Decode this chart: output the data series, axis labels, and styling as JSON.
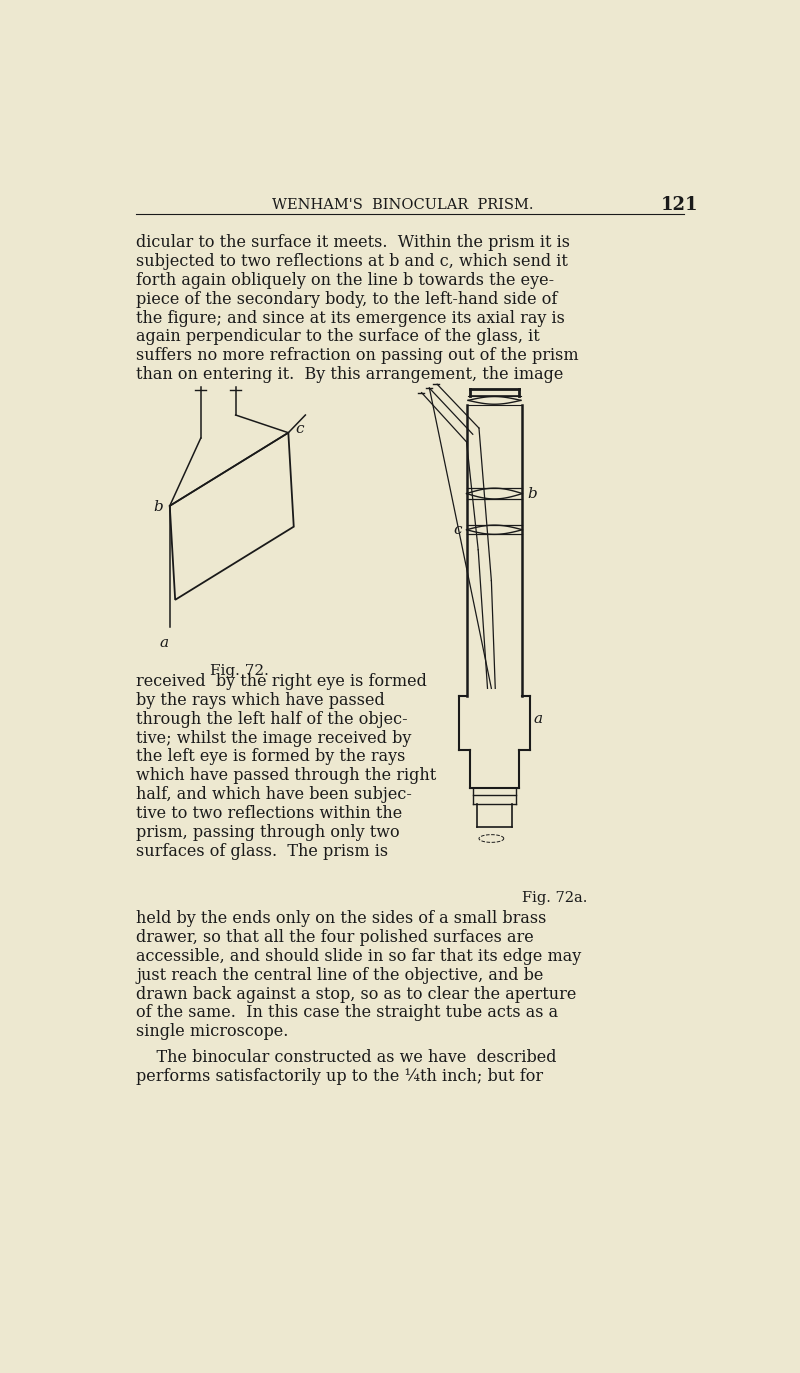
{
  "bg_color": "#ede8d0",
  "text_color": "#1a1a1a",
  "header_text": "WENHAM'S  BINOCULAR  PRISM.",
  "page_number": "121",
  "fig72_caption": "Fig. 72.",
  "fig72a_caption": "Fig. 72a."
}
